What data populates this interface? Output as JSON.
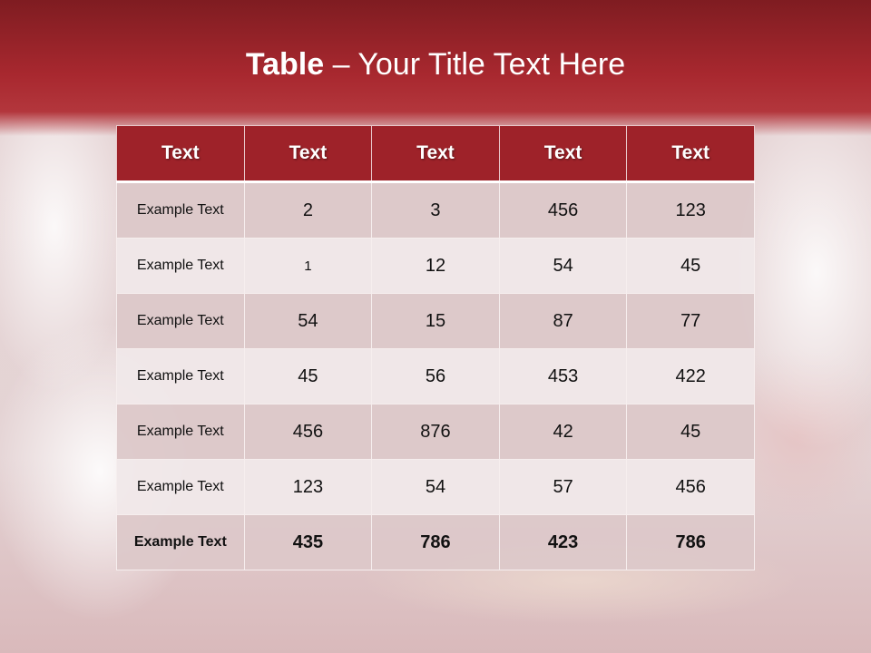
{
  "slide": {
    "title_bold": "Table",
    "title_rest": " – Your Title Text Here"
  },
  "table": {
    "headers": [
      "Text",
      "Text",
      "Text",
      "Text",
      "Text"
    ],
    "rows": [
      [
        "Example Text",
        "2",
        "3",
        "456",
        "123"
      ],
      [
        "Example Text",
        "1",
        "12",
        "54",
        "45"
      ],
      [
        "Example Text",
        "54",
        "15",
        "87",
        "77"
      ],
      [
        "Example Text",
        "45",
        "56",
        "453",
        "422"
      ],
      [
        "Example Text",
        "456",
        "876",
        "42",
        "45"
      ],
      [
        "Example Text",
        "123",
        "54",
        "57",
        "456"
      ],
      [
        "Example Text",
        "435",
        "786",
        "423",
        "786"
      ]
    ]
  },
  "colors": {
    "header": "#9e2229",
    "band": "#a8282f",
    "row_odd": "#dccbcc",
    "row_even": "#eee5e6"
  }
}
